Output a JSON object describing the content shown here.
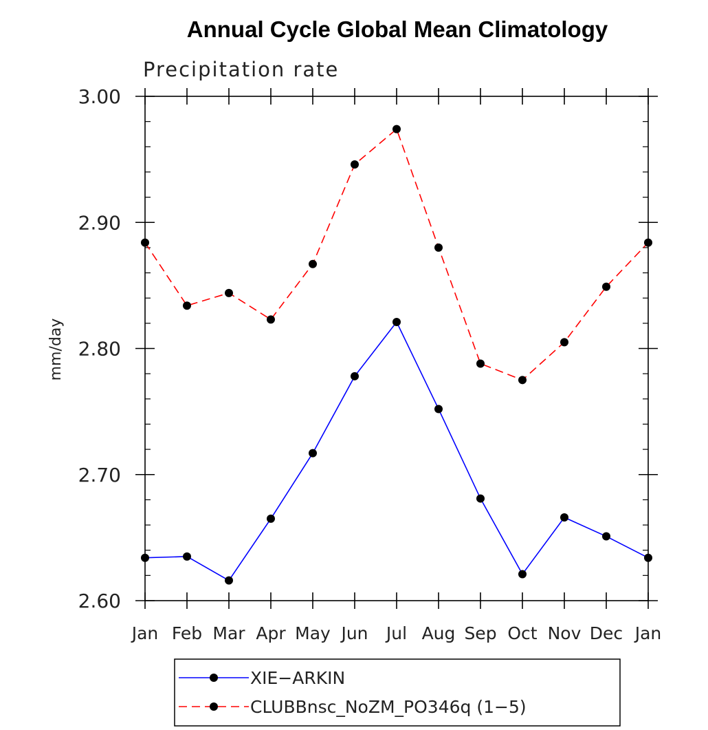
{
  "chart_data": {
    "type": "line",
    "title": "Annual Cycle Global Mean Climatology",
    "subtitle": "Precipitation rate",
    "xlabel": "",
    "ylabel": "mm/day",
    "categories": [
      "Jan",
      "Feb",
      "Mar",
      "Apr",
      "May",
      "Jun",
      "Jul",
      "Aug",
      "Sep",
      "Oct",
      "Nov",
      "Dec",
      "Jan"
    ],
    "ylim": [
      2.6,
      3.0
    ],
    "yticks": [
      "2.60",
      "2.70",
      "2.80",
      "2.90",
      "3.00"
    ],
    "grid": false,
    "legend_position": "bottom",
    "series": [
      {
        "name": "XIE−ARKIN",
        "color": "#0000ff",
        "dash": "solid",
        "values": [
          2.634,
          2.635,
          2.616,
          2.665,
          2.717,
          2.778,
          2.821,
          2.752,
          2.681,
          2.621,
          2.666,
          2.651,
          2.634
        ]
      },
      {
        "name": "CLUBBnsc_NoZM_PO346q (1−5)",
        "color": "#ff0000",
        "dash": "dashed",
        "values": [
          2.884,
          2.834,
          2.844,
          2.823,
          2.867,
          2.946,
          2.974,
          2.88,
          2.788,
          2.775,
          2.805,
          2.849,
          2.884
        ]
      }
    ]
  }
}
